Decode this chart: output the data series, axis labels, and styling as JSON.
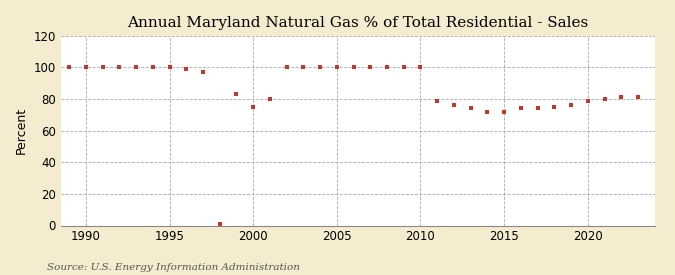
{
  "title": "Annual Maryland Natural Gas % of Total Residential - Sales",
  "ylabel": "Percent",
  "source": "Source: U.S. Energy Information Administration",
  "fig_bg_color": "#f5eccf",
  "plot_bg_color": "#ffffff",
  "years": [
    1989,
    1990,
    1991,
    1992,
    1993,
    1994,
    1995,
    1996,
    1997,
    1998,
    1999,
    2000,
    2001,
    2002,
    2003,
    2004,
    2005,
    2006,
    2007,
    2008,
    2009,
    2010,
    2011,
    2012,
    2013,
    2014,
    2015,
    2016,
    2017,
    2018,
    2019,
    2020,
    2021,
    2022,
    2023
  ],
  "values": [
    100,
    100,
    100,
    100,
    100,
    100,
    100,
    99,
    97,
    1,
    83,
    75,
    80,
    100,
    100,
    100,
    100,
    100,
    100,
    100,
    100,
    100,
    79,
    76,
    74,
    72,
    72,
    74,
    74,
    75,
    76,
    79,
    80,
    81,
    81
  ],
  "point_color": "#c0392b",
  "grid_color": "#aaaaaa",
  "vgrid_color": "#aaaaaa",
  "ylim": [
    0,
    120
  ],
  "yticks": [
    0,
    20,
    40,
    60,
    80,
    100,
    120
  ],
  "xlim": [
    1988.5,
    2024
  ],
  "xticks": [
    1990,
    1995,
    2000,
    2005,
    2010,
    2015,
    2020
  ],
  "title_fontsize": 11,
  "label_fontsize": 9,
  "tick_fontsize": 8.5,
  "source_fontsize": 7.5
}
